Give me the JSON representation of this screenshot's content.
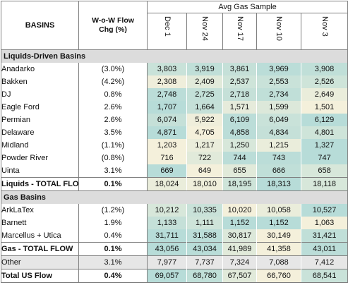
{
  "header": {
    "basins_label": "BASINS",
    "wow_label_1": "W-o-W Flow",
    "wow_label_2": "Chg (%)",
    "avg_label": "Avg Gas Sample",
    "dates": [
      "Dec 1",
      "Nov 24",
      "Nov 17",
      "Nov 10",
      "Nov 3"
    ]
  },
  "colors": {
    "low": "#fdf3dc",
    "high": "#9fd4d6",
    "section": "#dcdcdc",
    "other": "#e6e6e6",
    "border": "#7f7f7f"
  },
  "rows": [
    {
      "kind": "section",
      "label": "Liquids-Driven Basins"
    },
    {
      "kind": "data",
      "label": "Anadarko",
      "chg": "(3.0%)",
      "values": [
        "3,803",
        "3,919",
        "3,861",
        "3,969",
        "3,908"
      ],
      "shade": [
        0.55,
        0.65,
        0.6,
        0.7,
        0.65
      ]
    },
    {
      "kind": "data",
      "label": "Bakken",
      "chg": "(4.2%)",
      "values": [
        "2,308",
        "2,409",
        "2,537",
        "2,553",
        "2,526"
      ],
      "shade": [
        0.15,
        0.3,
        0.5,
        0.55,
        0.5
      ]
    },
    {
      "kind": "data",
      "label": "DJ",
      "chg": "0.8%",
      "values": [
        "2,748",
        "2,725",
        "2,718",
        "2,734",
        "2,649"
      ],
      "shade": [
        0.7,
        0.62,
        0.6,
        0.65,
        0.2
      ]
    },
    {
      "kind": "data",
      "label": "Eagle Ford",
      "chg": "2.6%",
      "values": [
        "1,707",
        "1,664",
        "1,571",
        "1,599",
        "1,501"
      ],
      "shade": [
        0.75,
        0.6,
        0.25,
        0.35,
        0.1
      ]
    },
    {
      "kind": "data",
      "label": "Permian",
      "chg": "2.6%",
      "values": [
        "6,074",
        "5,922",
        "6,109",
        "6,049",
        "6,129"
      ],
      "shade": [
        0.6,
        0.15,
        0.7,
        0.55,
        0.75
      ]
    },
    {
      "kind": "data",
      "label": "Delaware",
      "chg": "3.5%",
      "sub": true,
      "values": [
        "4,871",
        "4,705",
        "4,858",
        "4,834",
        "4,801"
      ],
      "shade": [
        0.75,
        0.1,
        0.7,
        0.6,
        0.5
      ]
    },
    {
      "kind": "data",
      "label": "Midland",
      "chg": "(1.1%)",
      "sub": true,
      "values": [
        "1,203",
        "1,217",
        "1,250",
        "1,215",
        "1,327"
      ],
      "shade": [
        0.1,
        0.2,
        0.4,
        0.2,
        0.75
      ]
    },
    {
      "kind": "data",
      "label": "Powder River",
      "chg": "(0.8%)",
      "values": [
        "716",
        "722",
        "744",
        "743",
        "747"
      ],
      "shade": [
        0.1,
        0.3,
        0.7,
        0.7,
        0.75
      ]
    },
    {
      "kind": "data",
      "label": "Uinta",
      "chg": "3.1%",
      "values": [
        "669",
        "649",
        "655",
        "666",
        "658"
      ],
      "shade": [
        0.75,
        0.1,
        0.3,
        0.65,
        0.4
      ]
    },
    {
      "kind": "total",
      "label": "Liquids - TOTAL FLOW",
      "chg": "0.1%",
      "values": [
        "18,024",
        "18,010",
        "18,195",
        "18,313",
        "18,118"
      ],
      "shade": [
        0.2,
        0.15,
        0.5,
        0.75,
        0.4
      ]
    },
    {
      "kind": "section",
      "label": "Gas Basins"
    },
    {
      "kind": "data",
      "label": "ArkLaTex",
      "chg": "(1.2%)",
      "sub": true,
      "values": [
        "10,212",
        "10,335",
        "10,020",
        "10,058",
        "10,527"
      ],
      "shade": [
        0.4,
        0.55,
        0.1,
        0.2,
        0.75
      ]
    },
    {
      "kind": "data",
      "label": "Barnett",
      "chg": "1.9%",
      "sub": true,
      "values": [
        "1,133",
        "1,111",
        "1,152",
        "1,152",
        "1,063"
      ],
      "shade": [
        0.6,
        0.5,
        0.75,
        0.75,
        0.1
      ]
    },
    {
      "kind": "data",
      "label": "Marcellus + Utica",
      "chg": "0.4%",
      "sub": true,
      "values": [
        "31,711",
        "31,588",
        "30,817",
        "30,149",
        "31,421"
      ],
      "shade": [
        0.75,
        0.7,
        0.35,
        0.1,
        0.65
      ]
    },
    {
      "kind": "total",
      "label": "Gas - TOTAL FLOW",
      "chg": "0.1%",
      "values": [
        "43,056",
        "43,034",
        "41,989",
        "41,358",
        "43,011"
      ],
      "shade": [
        0.75,
        0.72,
        0.3,
        0.1,
        0.7
      ]
    },
    {
      "kind": "other",
      "label": "Other",
      "chg": "3.1%",
      "values": [
        "7,977",
        "7,737",
        "7,324",
        "7,088",
        "7,412"
      ]
    },
    {
      "kind": "grand",
      "label": "Total US Flow",
      "chg": "0.4%",
      "values": [
        "69,057",
        "68,780",
        "67,507",
        "66,760",
        "68,541"
      ],
      "shade": [
        0.75,
        0.65,
        0.3,
        0.1,
        0.55
      ]
    }
  ]
}
